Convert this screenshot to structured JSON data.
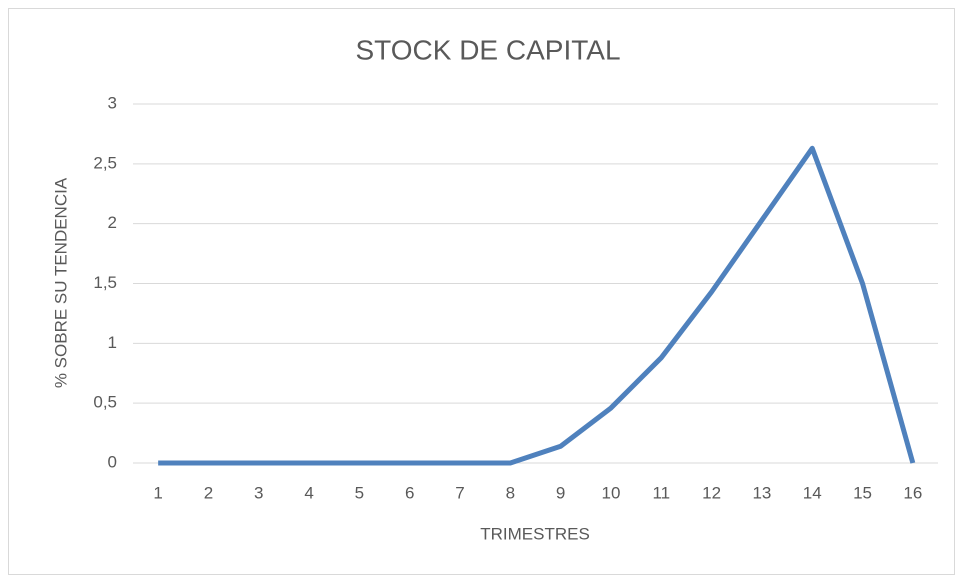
{
  "chart_data": {
    "type": "line",
    "title": "STOCK DE CAPITAL",
    "x_label": "TRIMESTRES",
    "y_label": "% SOBRE SU TENDENCIA",
    "categories": [
      1,
      2,
      3,
      4,
      5,
      6,
      7,
      8,
      9,
      10,
      11,
      12,
      13,
      14,
      15,
      16
    ],
    "series": [
      {
        "name": "Stock de capital",
        "color": "#4f81bd",
        "values": [
          0,
          0,
          0,
          0,
          0,
          0,
          0,
          0,
          0.14,
          0.46,
          0.88,
          1.43,
          2.03,
          2.63,
          1.5,
          0
        ]
      }
    ],
    "ylim": [
      0,
      3
    ],
    "yticks": [
      0,
      {
        "value": 0.5,
        "label": "0,5"
      },
      1,
      {
        "value": 1.5,
        "label": "1,5"
      },
      2,
      {
        "value": 2.5,
        "label": "2,5"
      },
      3
    ],
    "grid": true
  }
}
